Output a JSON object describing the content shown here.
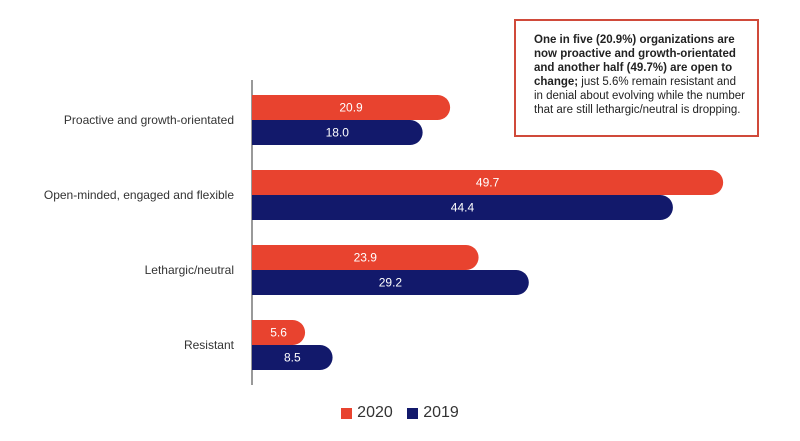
{
  "colors": {
    "2020": "#e8432f",
    "2019": "#12196b"
  },
  "annotation": {
    "bold_text": "One in five (20.9%) organizations are now proactive and growth-orientated and another half (49.7%) are open to change;",
    "normal_text": " just 5.6% remain resistant and in denial about evolving while the number that are still lethargic/neutral is dropping."
  },
  "legend": [
    {
      "name": "2020",
      "color": "#e8432f"
    },
    {
      "name": "2019",
      "color": "#12196b"
    }
  ],
  "chart_data": {
    "type": "bar",
    "orientation": "horizontal",
    "title": "",
    "xlabel": "",
    "ylabel": "",
    "categories": [
      "Proactive and growth-orientated",
      "Open-minded, engaged and flexible",
      "Lethargic/neutral",
      "Resistant"
    ],
    "series": [
      {
        "name": "2020",
        "color": "#e8432f",
        "values": [
          20.9,
          49.7,
          23.9,
          5.6
        ],
        "labels": [
          "20.9",
          "49.7",
          "23.9",
          "5.6"
        ]
      },
      {
        "name": "2019",
        "color": "#12196b",
        "values": [
          18.0,
          44.4,
          29.2,
          8.5
        ],
        "labels": [
          "18.0",
          "44.4",
          "29.2",
          "8.5"
        ]
      }
    ],
    "xlim": [
      0,
      50
    ],
    "grid": false,
    "legend_position": "bottom"
  }
}
